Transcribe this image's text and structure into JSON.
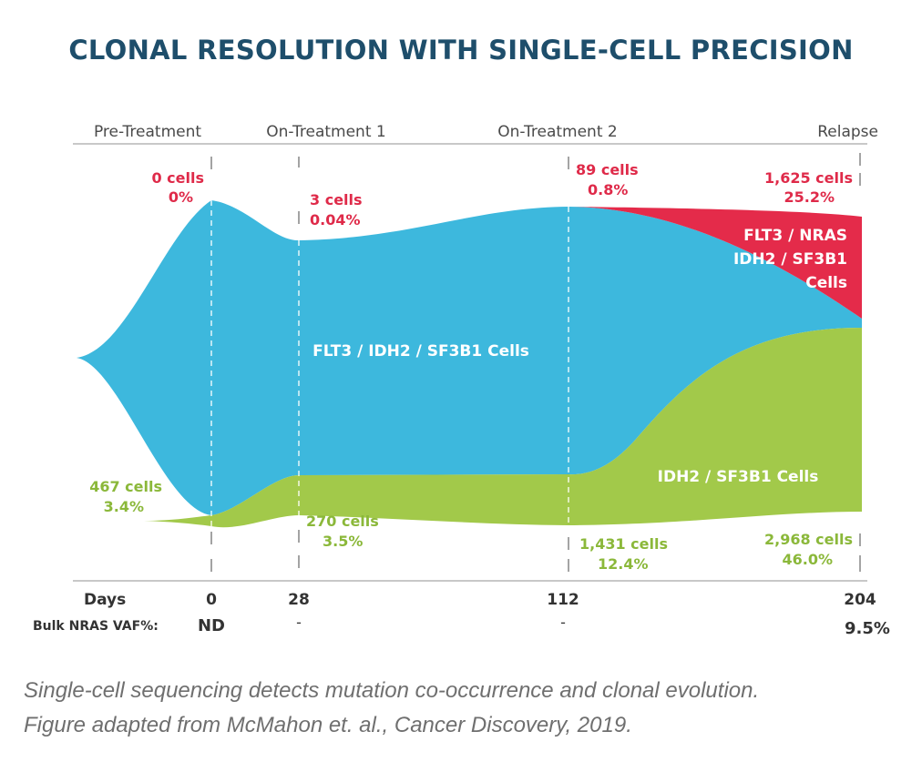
{
  "title": "CLONAL RESOLUTION WITH SINGLE-CELL PRECISION",
  "caption": {
    "line1": "Single-cell sequencing detects mutation co-occurrence and clonal evolution.",
    "line2": "Figure adapted from McMahon et. al., Cancer Discovery, 2019."
  },
  "colors": {
    "blue": "#3db8dd",
    "green": "#a2c94a",
    "red": "#e42b4a",
    "green_text": "#8bb83a",
    "red_text": "#df2a49",
    "title": "#1e4e6b"
  },
  "chart_data": {
    "type": "area",
    "phases": [
      {
        "label": "Pre-Treatment",
        "day": 0
      },
      {
        "label": "On-Treatment 1",
        "day": 28
      },
      {
        "label": "On-Treatment 2",
        "day": 112
      },
      {
        "label": "Relapse",
        "day": 204
      }
    ],
    "x_axis_label": "Days",
    "x_ticks": [
      0,
      28,
      112,
      204
    ],
    "x_tick_labels": [
      "0",
      "28",
      "112",
      "204"
    ],
    "bulk_vaf": {
      "label": "Bulk NRAS VAF%:",
      "values": [
        "ND",
        "-",
        "-",
        "9.5%"
      ]
    },
    "series": [
      {
        "name": "FLT3 / IDH2 / SF3B1 Cells",
        "color": "#3db8dd"
      },
      {
        "name": "IDH2 / SF3B1 Cells",
        "color": "#a2c94a",
        "cells": [
          "467 cells",
          "270 cells",
          "1,431 cells",
          "2,968 cells"
        ],
        "percent": [
          "3.4%",
          "3.5%",
          "12.4%",
          "46.0%"
        ],
        "percent_values": [
          3.4,
          3.5,
          12.4,
          46.0
        ]
      },
      {
        "name": "FLT3 / NRAS IDH2 / SF3B1 Cells",
        "color": "#e42b4a",
        "cells": [
          "0 cells",
          "3 cells",
          "89 cells",
          "1,625 cells"
        ],
        "percent": [
          "0%",
          "0.04%",
          "0.8%",
          "25.2%"
        ],
        "percent_values": [
          0,
          0.04,
          0.8,
          25.2
        ]
      }
    ]
  }
}
